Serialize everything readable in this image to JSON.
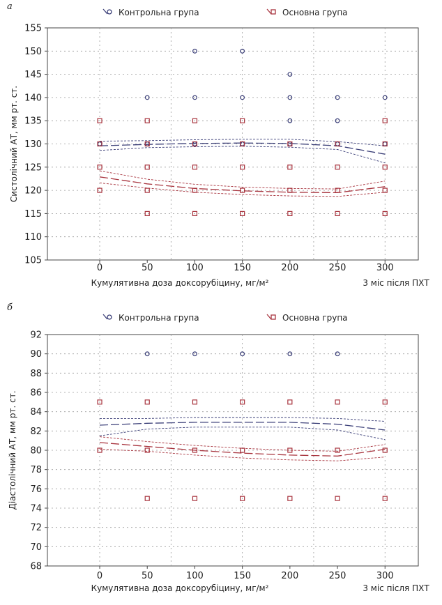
{
  "colors": {
    "control": "#3b3f78",
    "main": "#a8343e",
    "grid": "#9a9a9a",
    "axis": "#444444"
  },
  "chart_data": [
    {
      "type": "scatter",
      "panel_label": "а",
      "ylabel": "Систолічний АТ, мм рт. ст.",
      "xlabel": "Кумулятивна доза доксорубіцину, мг/м²",
      "x_extra_label": "3 міс після ПХТ",
      "x_ticks": [
        0,
        50,
        100,
        150,
        200,
        250,
        300
      ],
      "xlim": [
        -55,
        335
      ],
      "ylim": [
        105,
        155
      ],
      "y_ticks": [
        105,
        110,
        115,
        120,
        125,
        130,
        135,
        140,
        145,
        150,
        155
      ],
      "grid": true,
      "legend_position": "top",
      "series": [
        {
          "name": "Контрольна група",
          "marker": "circle",
          "points": [
            [
              0,
              130
            ],
            [
              50,
              130
            ],
            [
              50,
              140
            ],
            [
              100,
              130
            ],
            [
              100,
              140
            ],
            [
              100,
              150
            ],
            [
              150,
              130
            ],
            [
              150,
              140
            ],
            [
              150,
              150
            ],
            [
              200,
              130
            ],
            [
              200,
              135
            ],
            [
              200,
              140
            ],
            [
              200,
              145
            ],
            [
              250,
              130
            ],
            [
              250,
              135
            ],
            [
              250,
              140
            ],
            [
              300,
              130
            ],
            [
              300,
              140
            ]
          ],
          "fit": [
            [
              0,
              129.6
            ],
            [
              50,
              129.9
            ],
            [
              100,
              130.1
            ],
            [
              150,
              130.2
            ],
            [
              200,
              130.1
            ],
            [
              250,
              129.6
            ],
            [
              300,
              127.8
            ]
          ],
          "ci_upper": [
            [
              0,
              130.6
            ],
            [
              50,
              130.7
            ],
            [
              100,
              130.9
            ],
            [
              150,
              131
            ],
            [
              200,
              131
            ],
            [
              250,
              130.5
            ],
            [
              300,
              129.6
            ]
          ],
          "ci_lower": [
            [
              0,
              128.6
            ],
            [
              50,
              129.2
            ],
            [
              100,
              129.4
            ],
            [
              150,
              129.5
            ],
            [
              200,
              129.3
            ],
            [
              250,
              128.8
            ],
            [
              300,
              125.9
            ]
          ]
        },
        {
          "name": "Основна група",
          "marker": "square",
          "points": [
            [
              0,
              120
            ],
            [
              0,
              125
            ],
            [
              0,
              130
            ],
            [
              0,
              135
            ],
            [
              50,
              115
            ],
            [
              50,
              120
            ],
            [
              50,
              125
            ],
            [
              50,
              130
            ],
            [
              50,
              135
            ],
            [
              100,
              115
            ],
            [
              100,
              120
            ],
            [
              100,
              125
            ],
            [
              100,
              130
            ],
            [
              100,
              135
            ],
            [
              150,
              115
            ],
            [
              150,
              120
            ],
            [
              150,
              125
            ],
            [
              150,
              130
            ],
            [
              150,
              135
            ],
            [
              200,
              115
            ],
            [
              200,
              120
            ],
            [
              200,
              125
            ],
            [
              200,
              130
            ],
            [
              250,
              115
            ],
            [
              250,
              120
            ],
            [
              250,
              125
            ],
            [
              250,
              130
            ],
            [
              300,
              115
            ],
            [
              300,
              120
            ],
            [
              300,
              125
            ],
            [
              300,
              130
            ],
            [
              300,
              135
            ]
          ],
          "fit": [
            [
              0,
              122.9
            ],
            [
              50,
              121.4
            ],
            [
              100,
              120.4
            ],
            [
              150,
              119.9
            ],
            [
              200,
              119.6
            ],
            [
              250,
              119.5
            ],
            [
              300,
              120.8
            ]
          ],
          "ci_upper": [
            [
              0,
              124.2
            ],
            [
              50,
              122.4
            ],
            [
              100,
              121.3
            ],
            [
              150,
              120.7
            ],
            [
              200,
              120.4
            ],
            [
              250,
              120.3
            ],
            [
              300,
              122
            ]
          ],
          "ci_lower": [
            [
              0,
              121.6
            ],
            [
              50,
              120.5
            ],
            [
              100,
              119.6
            ],
            [
              150,
              119.1
            ],
            [
              200,
              118.8
            ],
            [
              250,
              118.7
            ],
            [
              300,
              119.6
            ]
          ]
        }
      ]
    },
    {
      "type": "scatter",
      "panel_label": "б",
      "ylabel": "Діастолічний АТ, мм рт. ст.",
      "xlabel": "Кумулятивна доза доксорубіцину, мг/м²",
      "x_extra_label": "3 міс після ПХТ",
      "x_ticks": [
        0,
        50,
        100,
        150,
        200,
        250,
        300
      ],
      "xlim": [
        -55,
        335
      ],
      "ylim": [
        68,
        92
      ],
      "y_ticks": [
        68,
        70,
        72,
        74,
        76,
        78,
        80,
        82,
        84,
        86,
        88,
        90,
        92
      ],
      "grid": true,
      "legend_position": "top",
      "series": [
        {
          "name": "Контрольна група",
          "marker": "circle",
          "points": [
            [
              50,
              90
            ],
            [
              100,
              90
            ],
            [
              150,
              90
            ],
            [
              200,
              90
            ],
            [
              250,
              90
            ]
          ],
          "fit": [
            [
              0,
              82.6
            ],
            [
              50,
              82.8
            ],
            [
              100,
              82.9
            ],
            [
              150,
              82.9
            ],
            [
              200,
              82.9
            ],
            [
              250,
              82.7
            ],
            [
              300,
              82.1
            ]
          ],
          "ci_upper": [
            [
              0,
              83.3
            ],
            [
              50,
              83.3
            ],
            [
              100,
              83.4
            ],
            [
              150,
              83.4
            ],
            [
              200,
              83.4
            ],
            [
              250,
              83.3
            ],
            [
              300,
              83
            ]
          ],
          "ci_lower": [
            [
              0,
              81.5
            ],
            [
              50,
              82.2
            ],
            [
              100,
              82.4
            ],
            [
              150,
              82.4
            ],
            [
              200,
              82.4
            ],
            [
              250,
              82.1
            ],
            [
              300,
              81.1
            ]
          ]
        },
        {
          "name": "Основна група",
          "marker": "square",
          "points": [
            [
              0,
              80
            ],
            [
              0,
              85
            ],
            [
              50,
              75
            ],
            [
              50,
              80
            ],
            [
              50,
              85
            ],
            [
              100,
              75
            ],
            [
              100,
              80
            ],
            [
              100,
              85
            ],
            [
              150,
              75
            ],
            [
              150,
              80
            ],
            [
              150,
              85
            ],
            [
              200,
              75
            ],
            [
              200,
              80
            ],
            [
              200,
              85
            ],
            [
              250,
              75
            ],
            [
              250,
              80
            ],
            [
              250,
              85
            ],
            [
              300,
              75
            ],
            [
              300,
              80
            ],
            [
              300,
              85
            ]
          ],
          "fit": [
            [
              0,
              80.8
            ],
            [
              50,
              80.4
            ],
            [
              100,
              80
            ],
            [
              150,
              79.7
            ],
            [
              200,
              79.5
            ],
            [
              250,
              79.4
            ],
            [
              300,
              80.1
            ]
          ],
          "ci_upper": [
            [
              0,
              81.4
            ],
            [
              50,
              80.9
            ],
            [
              100,
              80.5
            ],
            [
              150,
              80.2
            ],
            [
              200,
              80
            ],
            [
              250,
              79.9
            ],
            [
              300,
              80.6
            ]
          ],
          "ci_lower": [
            [
              0,
              80.1
            ],
            [
              50,
              79.9
            ],
            [
              100,
              79.5
            ],
            [
              150,
              79.2
            ],
            [
              200,
              79
            ],
            [
              250,
              78.9
            ],
            [
              300,
              79.3
            ]
          ]
        }
      ]
    }
  ]
}
